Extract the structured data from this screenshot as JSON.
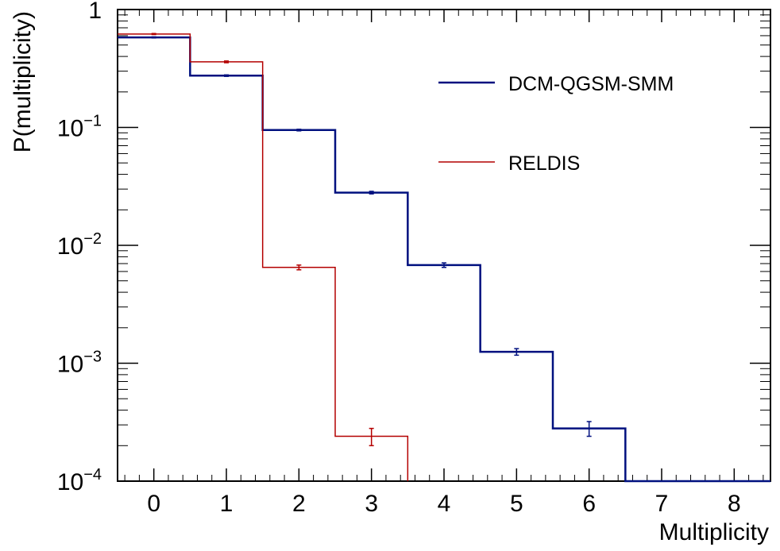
{
  "chart_data": {
    "type": "line",
    "title": "",
    "xlabel": "Multiplicity",
    "ylabel": "P(multiplicity)",
    "xlim": [
      -0.5,
      8.5
    ],
    "ylim": [
      0.0001,
      1
    ],
    "yscale": "log",
    "x_ticks": [
      0,
      1,
      2,
      3,
      4,
      5,
      6,
      7,
      8
    ],
    "y_ticks": [
      {
        "value": 1,
        "base": "1",
        "exp": ""
      },
      {
        "value": 0.1,
        "base": "10",
        "exp": "−1"
      },
      {
        "value": 0.01,
        "base": "10",
        "exp": "−2"
      },
      {
        "value": 0.001,
        "base": "10",
        "exp": "−3"
      },
      {
        "value": 0.0001,
        "base": "10",
        "exp": "−4"
      }
    ],
    "legend_position": "top-right",
    "series": [
      {
        "name": "DCM-QGSM-SMM",
        "color": "#00107f",
        "x": [
          0,
          1,
          2,
          3,
          4,
          5,
          6,
          7,
          8
        ],
        "values": [
          0.58,
          0.275,
          0.095,
          0.028,
          0.0068,
          0.00125,
          0.00028,
          0.0001,
          0.0001
        ],
        "errors": [
          0.006,
          0.004,
          0.0015,
          0.0007,
          0.0003,
          8e-05,
          4e-05,
          0,
          0
        ]
      },
      {
        "name": "RELDIS",
        "color": "#b40000",
        "x": [
          0,
          1,
          2,
          3
        ],
        "values": [
          0.62,
          0.36,
          0.0065,
          0.00024
        ],
        "errors": [
          0.006,
          0.006,
          0.0003,
          4e-05
        ]
      }
    ]
  }
}
